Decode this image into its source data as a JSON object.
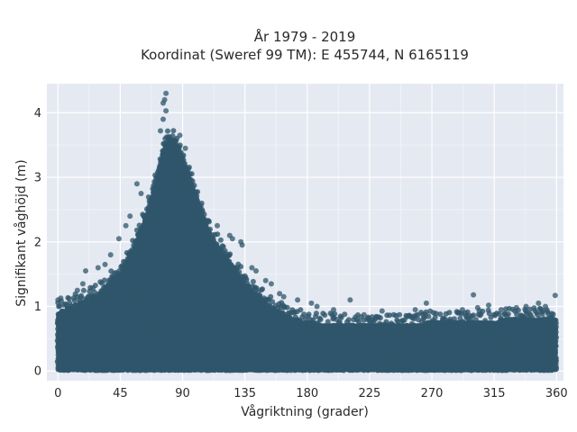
{
  "chart_data": {
    "type": "scatter",
    "title": "År 1979 - 2019",
    "subtitle": "Koordinat (Sweref 99 TM): E 455744, N 6165119",
    "xlabel": "Vågriktning (grader)",
    "ylabel": "Signifikant våghöjd (m)",
    "xlim": [
      -8,
      365
    ],
    "ylim": [
      -0.15,
      4.45
    ],
    "x_ticks": [
      0,
      45,
      90,
      135,
      180,
      225,
      270,
      315,
      360
    ],
    "y_ticks": [
      0,
      1,
      2,
      3,
      4
    ],
    "grid": true,
    "legend": "none",
    "marker_color": "#2f566b",
    "background_color": "#e5e9f2",
    "envelope": {
      "x": [
        0,
        15,
        30,
        45,
        55,
        62,
        68,
        72,
        75,
        78,
        82,
        86,
        90,
        95,
        100,
        105,
        110,
        120,
        135,
        150,
        165,
        180,
        195,
        210,
        225,
        240,
        255,
        270,
        285,
        300,
        315,
        330,
        345,
        360
      ],
      "y_max": [
        0.9,
        1.05,
        1.2,
        1.5,
        1.9,
        2.3,
        2.7,
        3.0,
        3.3,
        3.55,
        3.6,
        3.5,
        3.3,
        3.0,
        2.7,
        2.4,
        2.1,
        1.8,
        1.35,
        1.05,
        0.85,
        0.75,
        0.72,
        0.7,
        0.7,
        0.7,
        0.72,
        0.75,
        0.75,
        0.75,
        0.78,
        0.8,
        0.8,
        0.82
      ]
    },
    "outliers": [
      {
        "x": 78,
        "y": 4.3
      },
      {
        "x": 77,
        "y": 4.2
      },
      {
        "x": 76,
        "y": 4.15
      },
      {
        "x": 78,
        "y": 4.03
      },
      {
        "x": 76,
        "y": 3.9
      },
      {
        "x": 88,
        "y": 3.65
      },
      {
        "x": 74,
        "y": 3.72
      },
      {
        "x": 92,
        "y": 3.45
      },
      {
        "x": 57,
        "y": 2.9
      },
      {
        "x": 60,
        "y": 2.75
      },
      {
        "x": 99,
        "y": 2.6
      },
      {
        "x": 104,
        "y": 2.5
      },
      {
        "x": 115,
        "y": 2.25
      },
      {
        "x": 124,
        "y": 2.1
      },
      {
        "x": 126,
        "y": 2.05
      },
      {
        "x": 132,
        "y": 2.0
      },
      {
        "x": 133,
        "y": 1.95
      },
      {
        "x": 140,
        "y": 1.6
      },
      {
        "x": 143,
        "y": 1.55
      },
      {
        "x": 150,
        "y": 1.4
      },
      {
        "x": 154,
        "y": 1.35
      },
      {
        "x": 160,
        "y": 1.2
      },
      {
        "x": 163,
        "y": 1.15
      },
      {
        "x": 173,
        "y": 1.1
      },
      {
        "x": 183,
        "y": 1.05
      },
      {
        "x": 187,
        "y": 1.0
      },
      {
        "x": 211,
        "y": 1.1
      },
      {
        "x": 199,
        "y": 0.95
      },
      {
        "x": 221,
        "y": 0.87
      },
      {
        "x": 234,
        "y": 0.93
      },
      {
        "x": 258,
        "y": 0.95
      },
      {
        "x": 266,
        "y": 1.05
      },
      {
        "x": 290,
        "y": 0.9
      },
      {
        "x": 292,
        "y": 0.95
      },
      {
        "x": 300,
        "y": 1.18
      },
      {
        "x": 303,
        "y": 0.98
      },
      {
        "x": 311,
        "y": 1.02
      },
      {
        "x": 320,
        "y": 0.95
      },
      {
        "x": 331,
        "y": 0.98
      },
      {
        "x": 338,
        "y": 1.0
      },
      {
        "x": 347,
        "y": 1.05
      },
      {
        "x": 352,
        "y": 1.0
      },
      {
        "x": 359,
        "y": 1.17
      },
      {
        "x": 353,
        "y": 0.95
      },
      {
        "x": 0,
        "y": 1.1
      },
      {
        "x": 2,
        "y": 1.13
      },
      {
        "x": 8,
        "y": 1.12
      },
      {
        "x": 14,
        "y": 1.25
      },
      {
        "x": 18,
        "y": 1.35
      },
      {
        "x": 20,
        "y": 1.55
      },
      {
        "x": 29,
        "y": 1.6
      },
      {
        "x": 34,
        "y": 1.65
      },
      {
        "x": 38,
        "y": 1.8
      },
      {
        "x": 44,
        "y": 2.05
      },
      {
        "x": 49,
        "y": 2.25
      },
      {
        "x": 52,
        "y": 2.4
      }
    ]
  }
}
